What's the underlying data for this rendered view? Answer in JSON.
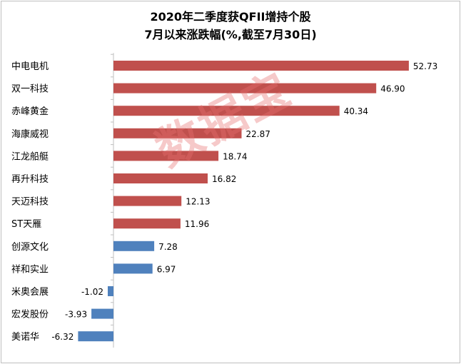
{
  "chart_data": {
    "type": "bar",
    "orientation": "horizontal",
    "title": "2020年二季度获QFII增持个股",
    "subtitle": "7月以来涨跌幅(%,截至7月30日)",
    "categories": [
      "中电电机",
      "双一科技",
      "赤峰黄金",
      "海康威视",
      "江龙船艇",
      "再升科技",
      "天迈科技",
      "ST天雁",
      "创源文化",
      "祥和实业",
      "米奥会展",
      "宏发股份",
      "美诺华"
    ],
    "values": [
      52.73,
      46.9,
      40.34,
      22.87,
      18.74,
      16.82,
      12.13,
      11.96,
      7.28,
      6.97,
      -1.02,
      -3.93,
      -6.32
    ],
    "value_labels": [
      "52.73",
      "46.90",
      "40.34",
      "22.87",
      "18.74",
      "16.82",
      "12.13",
      "11.96",
      "7.28",
      "6.97",
      "-1.02",
      "-3.93",
      "-6.32"
    ],
    "xlim": [
      -6.32,
      52.73
    ],
    "grid": false,
    "legend": "none",
    "colors": {
      "above_10": "#c0504d",
      "below_10": "#4f81bd",
      "axis": "#bfbfbf",
      "text": "#000000"
    }
  },
  "watermark": "数据宝"
}
